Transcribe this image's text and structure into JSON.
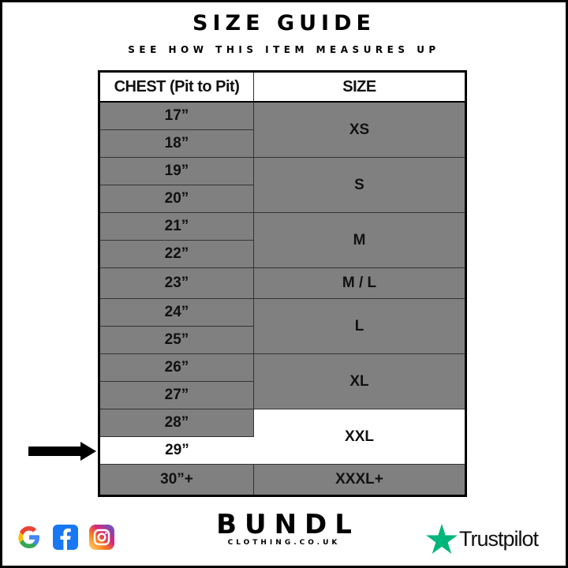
{
  "header": {
    "title": "SIZE GUIDE",
    "subtitle": "SEE HOW THIS ITEM MEASURES UP"
  },
  "table": {
    "columns": [
      "CHEST (Pit to Pit)",
      "SIZE"
    ],
    "chest": [
      "17”",
      "18”",
      "19”",
      "20”",
      "21”",
      "22”",
      "23”",
      "24”",
      "25”",
      "26”",
      "27”",
      "28”",
      "29”",
      "30”+"
    ],
    "sizes": [
      "XS",
      "S",
      "M",
      "M / L",
      "L",
      "XL",
      "XXL",
      "XXXL+"
    ],
    "highlighted_chest": "29”",
    "highlighted_size": "XXL"
  },
  "colors": {
    "row_fill": "#808080",
    "highlight": "#ffffff",
    "trustpilot_star": "#00b67a"
  },
  "footer": {
    "brand": "BUNDL",
    "brand_sub": "CLOTHING.CO.UK",
    "trustpilot": "Trustpilot",
    "social_icons": [
      "google-icon",
      "facebook-icon",
      "instagram-icon"
    ]
  }
}
